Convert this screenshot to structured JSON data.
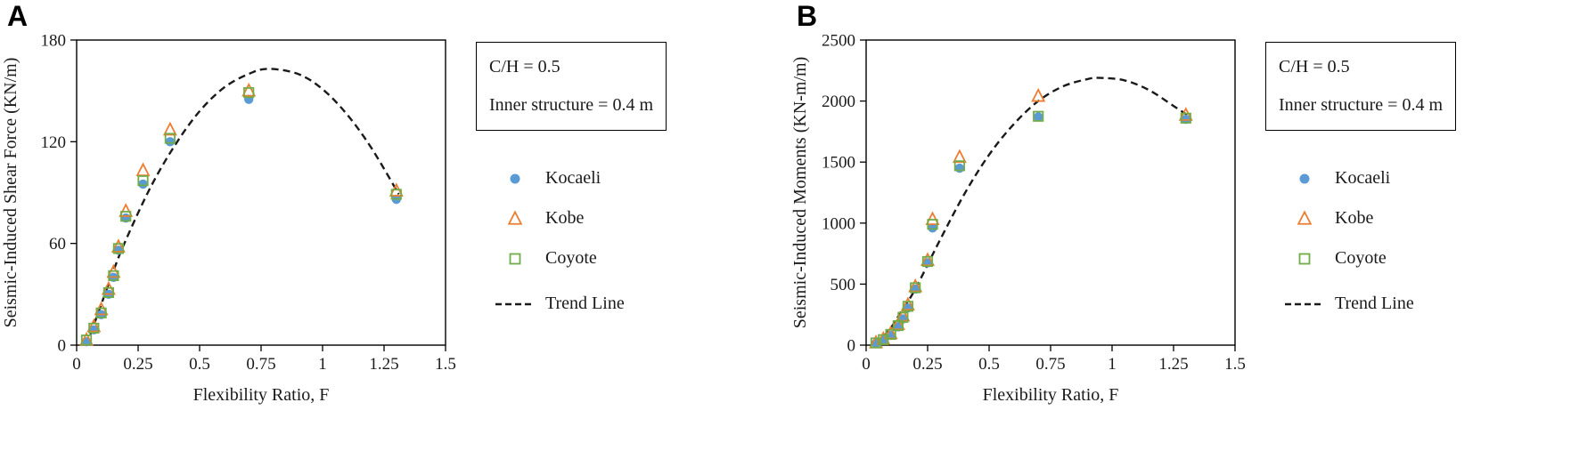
{
  "page": {
    "background": "#ffffff",
    "text_color": "#1a1a1a"
  },
  "chart_data": [
    {
      "type": "scatter",
      "panel_label": "A",
      "xlabel": "Flexibility Ratio, F",
      "ylabel": "Seismic-Induced Shear Force (KN/m)",
      "xlim": [
        0,
        1.5
      ],
      "ylim": [
        0,
        180
      ],
      "xticks": [
        "0",
        "0.25",
        "0.5",
        "0.75",
        "1",
        "1.25",
        "1.5"
      ],
      "xtick_values": [
        0,
        0.25,
        0.5,
        0.75,
        1,
        1.25,
        1.5
      ],
      "yticks": [
        "0",
        "60",
        "120",
        "180"
      ],
      "ytick_values": [
        0,
        60,
        120,
        180
      ],
      "grid": false,
      "legend_position": "right",
      "annotation": [
        "C/H = 0.5",
        "Inner structure = 0.4 m"
      ],
      "series": [
        {
          "name": "Kocaeli",
          "marker": "circle",
          "fill": true,
          "color": "#5b9bd5",
          "points": [
            [
              0.04,
              2
            ],
            [
              0.07,
              9
            ],
            [
              0.1,
              18
            ],
            [
              0.13,
              30
            ],
            [
              0.15,
              40
            ],
            [
              0.17,
              56
            ],
            [
              0.2,
              75
            ],
            [
              0.27,
              95
            ],
            [
              0.38,
              120
            ],
            [
              0.7,
              145
            ],
            [
              1.3,
              86
            ]
          ]
        },
        {
          "name": "Kobe",
          "marker": "triangle",
          "fill": false,
          "color": "#ed7d31",
          "points": [
            [
              0.04,
              3
            ],
            [
              0.07,
              11
            ],
            [
              0.1,
              21
            ],
            [
              0.13,
              33
            ],
            [
              0.15,
              43
            ],
            [
              0.17,
              58
            ],
            [
              0.2,
              79
            ],
            [
              0.27,
              103
            ],
            [
              0.38,
              127
            ],
            [
              0.7,
              150
            ],
            [
              1.3,
              91
            ]
          ]
        },
        {
          "name": "Coyote",
          "marker": "square",
          "fill": false,
          "color": "#70ad47",
          "points": [
            [
              0.04,
              3
            ],
            [
              0.07,
              10
            ],
            [
              0.1,
              19
            ],
            [
              0.13,
              31
            ],
            [
              0.15,
              41
            ],
            [
              0.17,
              57
            ],
            [
              0.2,
              76
            ],
            [
              0.27,
              97
            ],
            [
              0.38,
              122
            ],
            [
              0.7,
              149
            ],
            [
              1.3,
              89
            ]
          ]
        }
      ],
      "trend": {
        "name": "Trend Line",
        "style": "dashed",
        "color": "#1a1a1a",
        "points": [
          [
            0.04,
            0
          ],
          [
            0.1,
            24
          ],
          [
            0.15,
            44
          ],
          [
            0.2,
            62
          ],
          [
            0.3,
            93
          ],
          [
            0.4,
            118
          ],
          [
            0.5,
            138
          ],
          [
            0.6,
            152
          ],
          [
            0.7,
            160
          ],
          [
            0.78,
            163
          ],
          [
            0.9,
            160
          ],
          [
            1.0,
            151
          ],
          [
            1.1,
            136
          ],
          [
            1.2,
            116
          ],
          [
            1.31,
            89
          ]
        ]
      }
    },
    {
      "type": "scatter",
      "panel_label": "B",
      "xlabel": "Flexibility Ratio, F",
      "ylabel": "Seismic-Induced Moments (KN-m/m)",
      "xlim": [
        0,
        1.5
      ],
      "ylim": [
        0,
        2500
      ],
      "xticks": [
        "0",
        "0.25",
        "0.5",
        "0.75",
        "1",
        "1.25",
        "1.5"
      ],
      "xtick_values": [
        0,
        0.25,
        0.5,
        0.75,
        1,
        1.25,
        1.5
      ],
      "yticks": [
        "0",
        "500",
        "1000",
        "1500",
        "2000",
        "2500"
      ],
      "ytick_values": [
        0,
        500,
        1000,
        1500,
        2000,
        2500
      ],
      "grid": false,
      "legend_position": "right",
      "annotation": [
        "C/H = 0.5",
        "Inner structure = 0.4 m"
      ],
      "series": [
        {
          "name": "Kocaeli",
          "marker": "circle",
          "fill": true,
          "color": "#5b9bd5",
          "points": [
            [
              0.04,
              15
            ],
            [
              0.07,
              40
            ],
            [
              0.1,
              80
            ],
            [
              0.13,
              150
            ],
            [
              0.15,
              215
            ],
            [
              0.17,
              305
            ],
            [
              0.2,
              460
            ],
            [
              0.25,
              675
            ],
            [
              0.27,
              960
            ],
            [
              0.38,
              1450
            ],
            [
              0.7,
              1870
            ],
            [
              1.3,
              1850
            ]
          ]
        },
        {
          "name": "Kobe",
          "marker": "triangle",
          "fill": false,
          "color": "#ed7d31",
          "points": [
            [
              0.04,
              20
            ],
            [
              0.07,
              50
            ],
            [
              0.1,
              95
            ],
            [
              0.13,
              170
            ],
            [
              0.15,
              240
            ],
            [
              0.17,
              330
            ],
            [
              0.2,
              480
            ],
            [
              0.25,
              695
            ],
            [
              0.27,
              1030
            ],
            [
              0.38,
              1540
            ],
            [
              0.7,
              2040
            ],
            [
              1.3,
              1885
            ]
          ]
        },
        {
          "name": "Coyote",
          "marker": "square",
          "fill": false,
          "color": "#70ad47",
          "points": [
            [
              0.04,
              18
            ],
            [
              0.07,
              45
            ],
            [
              0.1,
              88
            ],
            [
              0.13,
              160
            ],
            [
              0.15,
              228
            ],
            [
              0.17,
              318
            ],
            [
              0.2,
              470
            ],
            [
              0.25,
              685
            ],
            [
              0.27,
              990
            ],
            [
              0.38,
              1470
            ],
            [
              0.7,
              1875
            ],
            [
              1.3,
              1860
            ]
          ]
        }
      ],
      "trend": {
        "name": "Trend Line",
        "style": "dashed",
        "color": "#1a1a1a",
        "points": [
          [
            0.04,
            0
          ],
          [
            0.1,
            140
          ],
          [
            0.15,
            300
          ],
          [
            0.2,
            460
          ],
          [
            0.3,
            860
          ],
          [
            0.4,
            1240
          ],
          [
            0.5,
            1560
          ],
          [
            0.6,
            1810
          ],
          [
            0.7,
            2000
          ],
          [
            0.8,
            2120
          ],
          [
            0.9,
            2180
          ],
          [
            0.95,
            2190
          ],
          [
            1.05,
            2170
          ],
          [
            1.15,
            2090
          ],
          [
            1.25,
            1960
          ],
          [
            1.31,
            1880
          ]
        ]
      }
    }
  ]
}
